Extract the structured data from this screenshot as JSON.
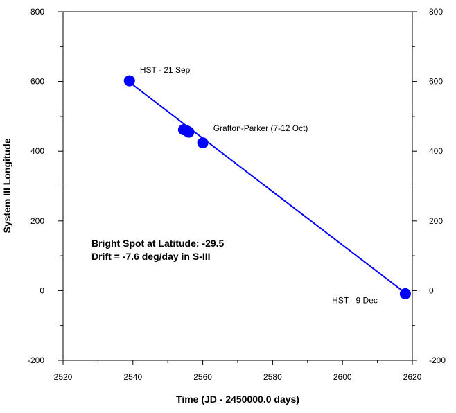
{
  "chart_data": {
    "type": "scatter",
    "title": "",
    "xlabel": "Time (JD - 2450000.0 days)",
    "ylabel": "System III Longitude",
    "xlim": [
      2520,
      2620
    ],
    "ylim": [
      -200,
      800
    ],
    "xticks": [
      2520,
      2540,
      2560,
      2580,
      2600,
      2620
    ],
    "yticks": [
      -200,
      0,
      200,
      400,
      600,
      800
    ],
    "right_axis_mirrored": true,
    "grid": false,
    "points": [
      {
        "x": 2539,
        "y": 602
      },
      {
        "x": 2554.5,
        "y": 462
      },
      {
        "x": 2555.5,
        "y": 458
      },
      {
        "x": 2556,
        "y": 455
      },
      {
        "x": 2560,
        "y": 424
      },
      {
        "x": 2618,
        "y": -9
      }
    ],
    "fit_line": {
      "x": [
        2539,
        2618
      ],
      "y": [
        598,
        -7
      ]
    },
    "color": "#0000ff",
    "annotations": [
      {
        "text": "HST - 21 Sep",
        "x": 2542,
        "y": 625
      },
      {
        "text": "Grafton-Parker (7-12 Oct)",
        "x": 2563,
        "y": 458
      },
      {
        "text": "HST - 9 Dec",
        "x": 2597,
        "y": -36
      }
    ],
    "notes": [
      "Bright Spot at Latitude: -29.5",
      "Drift = -7.6 deg/day in S-III"
    ]
  }
}
